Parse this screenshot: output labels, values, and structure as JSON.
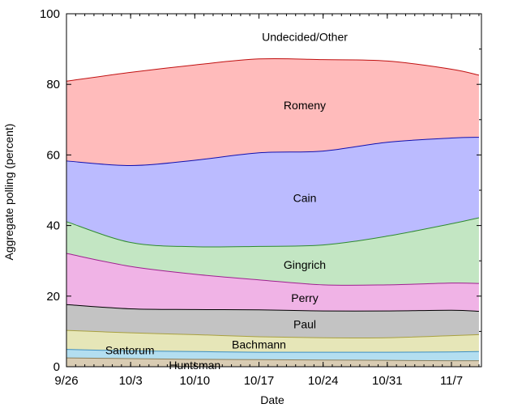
{
  "chart_data": {
    "type": "area",
    "stacked": true,
    "xlabel": "Date",
    "ylabel": "Aggregate polling (percent)",
    "ylim": [
      0,
      100
    ],
    "y_ticks": [
      0,
      20,
      40,
      60,
      80,
      100
    ],
    "x_ticks": [
      "9/26",
      "10/3",
      "10/10",
      "10/17",
      "10/24",
      "10/31",
      "11/7"
    ],
    "x_range": [
      "9/26",
      "11/10"
    ],
    "grid": false,
    "legend": "none",
    "x": [
      "9/26",
      "10/3",
      "10/10",
      "10/17",
      "10/24",
      "10/31",
      "11/7",
      "11/10"
    ],
    "series": [
      {
        "name": "Huntsman",
        "color": "#d9ccb3",
        "line_color": "#8c7e5a",
        "values": [
          2.5,
          2.3,
          2.1,
          2.0,
          1.9,
          1.8,
          1.7,
          1.7
        ]
      },
      {
        "name": "Santorum",
        "color": "#b3def0",
        "line_color": "#3d8fc2",
        "values": [
          2.4,
          2.2,
          2.2,
          2.1,
          2.2,
          2.3,
          2.5,
          2.6
        ]
      },
      {
        "name": "Bachmann",
        "color": "#e6e6b8",
        "line_color": "#a8a040",
        "values": [
          5.4,
          5.1,
          4.8,
          4.4,
          4.1,
          4.1,
          4.6,
          4.8
        ]
      },
      {
        "name": "Paul",
        "color": "#c3c3c3",
        "line_color": "#000000",
        "values": [
          7.3,
          6.8,
          7.1,
          7.6,
          7.6,
          7.6,
          7.2,
          6.6
        ]
      },
      {
        "name": "Perry",
        "color": "#f0b3e6",
        "line_color": "#a02090",
        "values": [
          14.5,
          12.0,
          10.0,
          8.5,
          7.4,
          7.4,
          7.7,
          7.9
        ]
      },
      {
        "name": "Gingrich",
        "color": "#c3e6c3",
        "line_color": "#2e8b2e",
        "values": [
          9.0,
          6.8,
          7.8,
          9.5,
          11.3,
          13.8,
          16.8,
          18.6
        ]
      },
      {
        "name": "Cain",
        "color": "#bbbbff",
        "line_color": "#1010b0",
        "values": [
          17.2,
          21.8,
          24.5,
          26.5,
          26.6,
          26.6,
          24.3,
          22.8
        ]
      },
      {
        "name": "Romeny",
        "color": "#ffbbbb",
        "line_color": "#c01010",
        "values": [
          22.6,
          26.4,
          27.0,
          26.6,
          25.9,
          23.0,
          19.5,
          17.6
        ]
      },
      {
        "name": "Undecided/Other",
        "color": "#ffffff",
        "line_color": "#ffffff",
        "values": [
          19.1,
          16.6,
          14.5,
          12.8,
          13.0,
          14.4,
          15.7,
          17.4
        ]
      }
    ]
  }
}
